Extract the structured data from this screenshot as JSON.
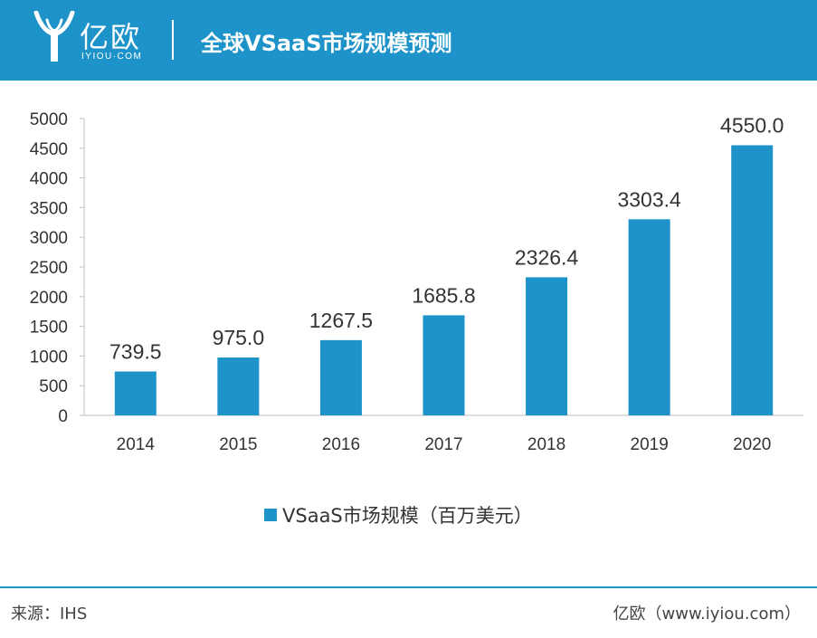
{
  "header": {
    "logo_cn": "亿欧",
    "logo_en": "IYIOU·COM",
    "title": "全球VSaaS市场规模预测"
  },
  "colors": {
    "accent": "#1e93c9"
  },
  "chart_data": {
    "type": "bar",
    "title": "全球VSaaS市场规模预测",
    "categories": [
      "2014",
      "2015",
      "2016",
      "2017",
      "2018",
      "2019",
      "2020"
    ],
    "values": [
      739.5,
      975.0,
      1267.5,
      1685.8,
      2326.4,
      3303.4,
      4550.0
    ],
    "value_labels": [
      "739.5",
      "975.0",
      "1267.5",
      "1685.8",
      "2326.4",
      "3303.4",
      "4550.0"
    ],
    "yticks": [
      0,
      500,
      1000,
      1500,
      2000,
      2500,
      3000,
      3500,
      4000,
      4500,
      5000
    ],
    "ylim": [
      0,
      5000
    ],
    "xlabel": "",
    "ylabel": "",
    "grid": false,
    "legend": {
      "label": "VSaaS市场规模（百万美元）",
      "placement": "bottom-center"
    },
    "series": [
      {
        "name": "VSaaS市场规模（百万美元）",
        "color": "#1e93c9"
      }
    ]
  },
  "footer": {
    "source": "来源：IHS",
    "credit": "亿欧（www.iyiou.com）"
  }
}
